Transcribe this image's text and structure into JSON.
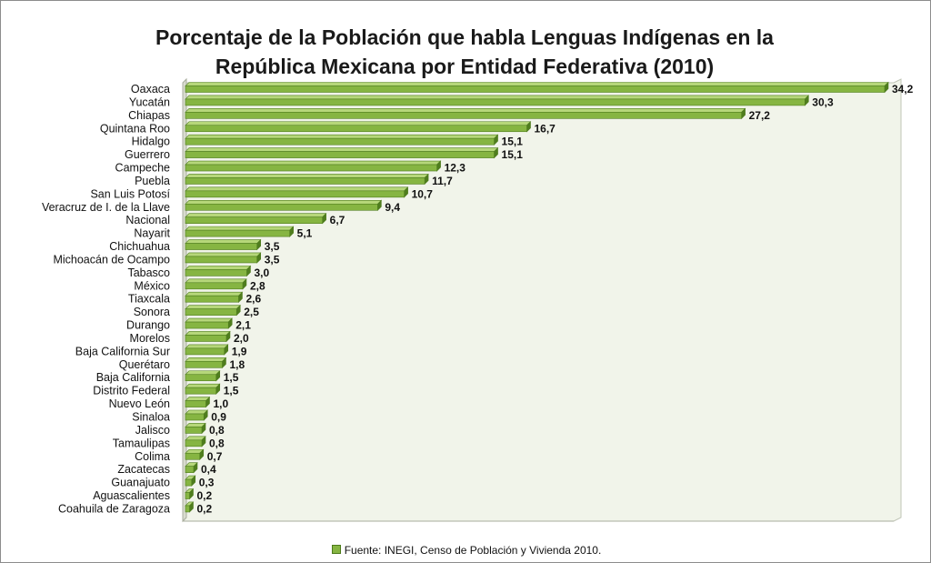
{
  "colors": {
    "bar": "#86b542",
    "bar_edge": "#4f7d1e",
    "bar_top": "#b6d77a",
    "plot_bg": "#f1f4ea",
    "grid_floor": "#d9dccf"
  },
  "chart_data": {
    "type": "bar",
    "orientation": "horizontal",
    "title": "Porcentaje de la Población que habla Lenguas Indígenas en la República Mexicana por Entidad Federativa (2010)",
    "title_lines": [
      "Porcentaje de la Población que habla Lenguas Indígenas en la",
      "República Mexicana por Entidad Federativa (2010)"
    ],
    "xlim": [
      0,
      34.2
    ],
    "legend_position": "bottom",
    "grid": false,
    "series": [
      {
        "name": "Fuente: INEGI, Censo de Población y Vivienda 2010."
      }
    ],
    "categories": [
      "Oaxaca",
      "Yucatán",
      "Chiapas",
      "Quintana Roo",
      "Hidalgo",
      "Guerrero",
      "Campeche",
      "Puebla",
      "San Luis Potosí",
      "Veracruz de I. de la Llave",
      "Nacional",
      "Nayarit",
      "Chichuahua",
      "Michoacán de Ocampo",
      "Tabasco",
      "México",
      "Tiaxcala",
      "Sonora",
      "Durango",
      "Morelos",
      "Baja California Sur",
      "Querétaro",
      "Baja California",
      "Distrito Federal",
      "Nuevo León",
      "Sinaloa",
      "Jalisco",
      "Tamaulipas",
      "Colima",
      "Zacatecas",
      "Guanajuato",
      "Aguascalientes",
      "Coahuila de Zaragoza"
    ],
    "values": [
      34.2,
      30.3,
      27.2,
      16.7,
      15.1,
      15.1,
      12.3,
      11.7,
      10.7,
      9.4,
      6.7,
      5.1,
      3.5,
      3.5,
      3.0,
      2.8,
      2.6,
      2.5,
      2.1,
      2.0,
      1.9,
      1.8,
      1.5,
      1.5,
      1.0,
      0.9,
      0.8,
      0.8,
      0.7,
      0.4,
      0.3,
      0.2,
      0.2
    ],
    "value_labels": [
      "34,2",
      "30,3",
      "27,2",
      "16,7",
      "15,1",
      "15,1",
      "12,3",
      "11,7",
      "10,7",
      "9,4",
      "6,7",
      "5,1",
      "3,5",
      "3,5",
      "3,0",
      "2,8",
      "2,6",
      "2,5",
      "2,1",
      "2,0",
      "1,9",
      "1,8",
      "1,5",
      "1,5",
      "1,0",
      "0,9",
      "0,8",
      "0,8",
      "0,7",
      "0,4",
      "0,3",
      "0,2",
      "0,2"
    ]
  }
}
